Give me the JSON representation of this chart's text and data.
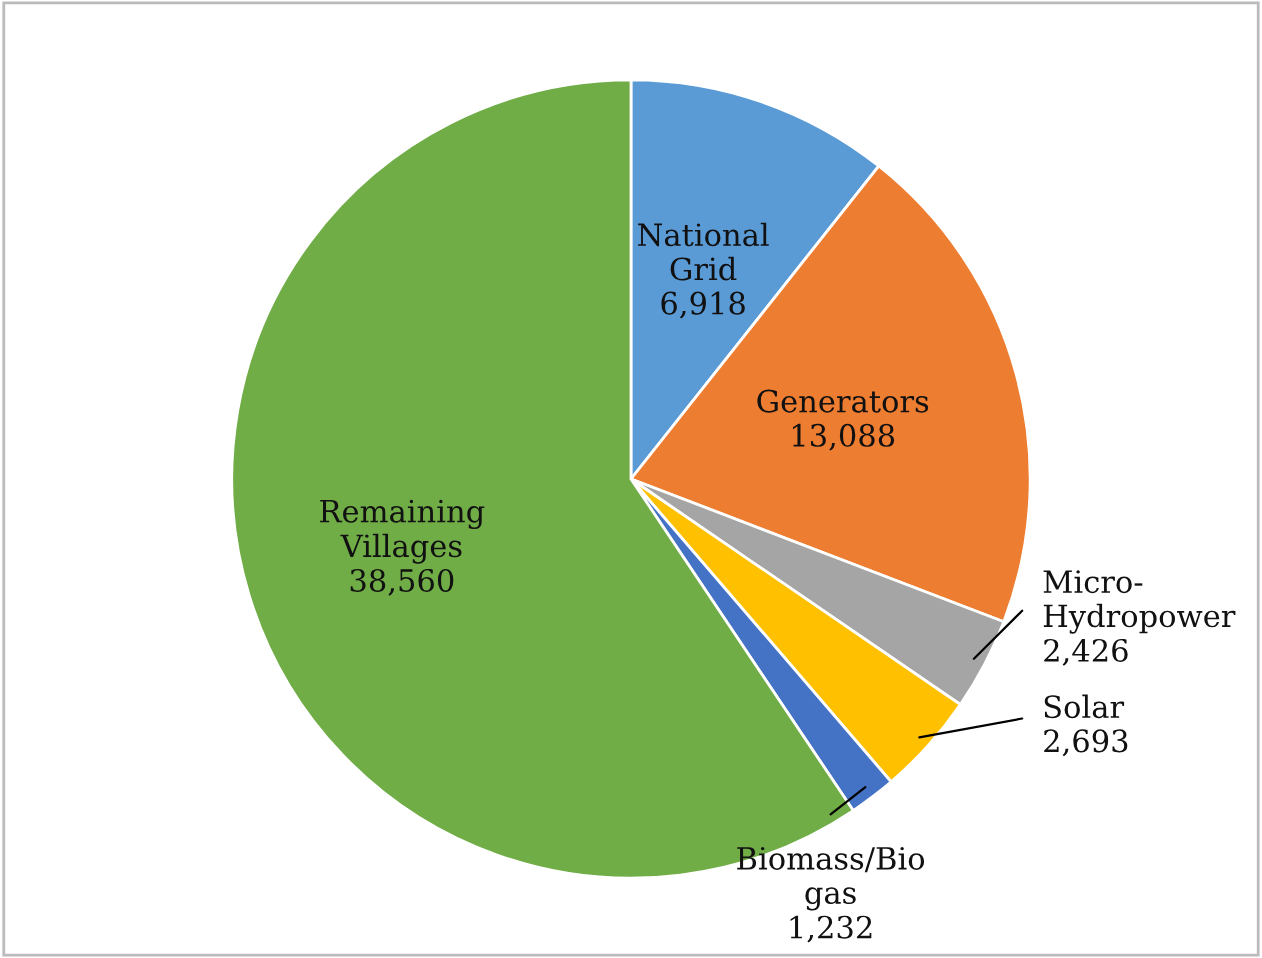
{
  "chart_data": {
    "type": "pie",
    "categories": [
      "National Grid",
      "Generators",
      "Micro- Hydropower",
      "Solar",
      "Biomass/Bio gas",
      "Remaining Villages"
    ],
    "values": [
      6918,
      13088,
      2426,
      2693,
      1232,
      38560
    ],
    "value_labels": [
      "6,918",
      "13,088",
      "2,426",
      "2,693",
      "1,232",
      "38,560"
    ],
    "colors": [
      "#5b9bd5",
      "#ed7d31",
      "#a5a5a5",
      "#ffc000",
      "#4472c4",
      "#70ad47"
    ]
  }
}
